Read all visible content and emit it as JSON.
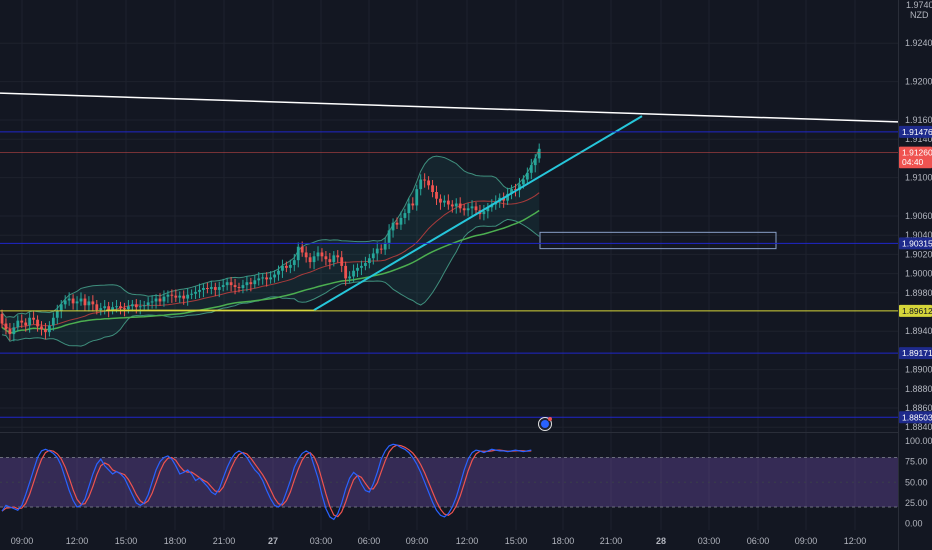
{
  "colors": {
    "background": "#131722",
    "up": "#26a69a",
    "down": "#ef5350",
    "grid": "#1e222d",
    "axis_text": "#b2b5be",
    "hline": "#1f27c9",
    "yellow": "#d6d63a",
    "cyan": "#26c6da",
    "white": "#ffffff",
    "bb_band": "#3f8f7d",
    "bb_fill": "rgba(38,166,154,0.10)",
    "ma_green": "#4caf50",
    "ma_red": "#a93b3b",
    "stoch_k": "#2962ff",
    "stoch_d": "#ef5350",
    "stoch_fill": "rgba(126,87,194,0.32)"
  },
  "price_axis": {
    "unit": "NZD",
    "top_label": "1.97400"
  },
  "chart_data": {
    "type": "candlestick",
    "y_ticks": [
      "1.92400",
      "1.92000",
      "1.91600",
      "1.91400",
      "1.91000",
      "1.90600",
      "1.90400",
      "1.90200",
      "1.90000",
      "1.89800",
      "1.89400",
      "1.89000",
      "1.88800",
      "1.88600",
      "1.88400"
    ],
    "x_ticks": [
      "09:00",
      "12:00",
      "15:00",
      "18:00",
      "21:00",
      "27",
      "03:00",
      "06:00",
      "09:00",
      "12:00",
      "15:00",
      "18:00",
      "21:00",
      "28",
      "03:00",
      "06:00",
      "09:00",
      "12:00"
    ],
    "ylim": [
      1.8835,
      1.9285
    ],
    "candles": {
      "start": 1.8958,
      "closes": [
        1.8948,
        1.8942,
        1.8937,
        1.8944,
        1.8951,
        1.8949,
        1.8946,
        1.8954,
        1.8952,
        1.8945,
        1.8942,
        1.8939,
        1.8946,
        1.8954,
        1.8961,
        1.8968,
        1.8972,
        1.8974,
        1.8969,
        1.8971,
        1.8974,
        1.8967,
        1.8971,
        1.8968,
        1.8962,
        1.8964,
        1.8966,
        1.8962,
        1.8965,
        1.8966,
        1.8964,
        1.8963,
        1.8966,
        1.8968,
        1.8965,
        1.8966,
        1.8967,
        1.897,
        1.8971,
        1.8974,
        1.8971,
        1.8976,
        1.8978,
        1.8977,
        1.8975,
        1.8977,
        1.8974,
        1.8978,
        1.8979,
        1.8981,
        1.8983,
        1.8985,
        1.8984,
        1.8986,
        1.8983,
        1.8986,
        1.8988,
        1.8991,
        1.8988,
        1.8986,
        1.8985,
        1.8988,
        1.8991,
        1.8989,
        1.8993,
        1.8995,
        1.8996,
        1.8994,
        1.8996,
        1.8999,
        1.9003,
        1.9008,
        1.9006,
        1.9009,
        1.9014,
        1.9028,
        1.9022,
        1.9017,
        1.9012,
        1.9018,
        1.9022,
        1.9018,
        1.9015,
        1.9012,
        1.9019,
        1.9017,
        1.9008,
        1.8995,
        1.8997,
        1.9003,
        1.9006,
        1.9008,
        1.9011,
        1.9016,
        1.9021,
        1.9026,
        1.9025,
        1.9032,
        1.9045,
        1.9053,
        1.9051,
        1.9058,
        1.9063,
        1.9073,
        1.9071,
        1.9088,
        1.9098,
        1.9097,
        1.9092,
        1.9085,
        1.9078,
        1.9074,
        1.9076,
        1.9072,
        1.907,
        1.9073,
        1.9068,
        1.9066,
        1.9068,
        1.907,
        1.9066,
        1.9062,
        1.9065,
        1.9069,
        1.9072,
        1.9075,
        1.9079,
        1.9076,
        1.9083,
        1.9088,
        1.9087,
        1.9093,
        1.9098,
        1.9105,
        1.9113,
        1.912,
        1.913
      ]
    },
    "indicators": [
      "Bollinger Bands",
      "Moving Average",
      "Stochastic RSI"
    ],
    "oscillator": {
      "ticks": [
        "100.00",
        "75.00",
        "50.00",
        "25.00",
        "0.00"
      ],
      "k": [
        15,
        22,
        20,
        18,
        16,
        22,
        35,
        50,
        65,
        80,
        88,
        90,
        88,
        85,
        80,
        70,
        55,
        40,
        28,
        20,
        22,
        30,
        45,
        60,
        72,
        78,
        70,
        65,
        60,
        63,
        60,
        55,
        45,
        35,
        25,
        22,
        25,
        35,
        50,
        65,
        75,
        80,
        82,
        78,
        70,
        60,
        62,
        65,
        60,
        52,
        55,
        50,
        45,
        38,
        35,
        42,
        55,
        68,
        78,
        85,
        88,
        85,
        80,
        72,
        65,
        60,
        52,
        40,
        30,
        22,
        20,
        25,
        38,
        52,
        68,
        78,
        85,
        88,
        85,
        70,
        55,
        35,
        18,
        8,
        5,
        12,
        25,
        42,
        55,
        62,
        58,
        48,
        40,
        38,
        48,
        62,
        78,
        88,
        94,
        96,
        95,
        92,
        90,
        86,
        80,
        72,
        62,
        50,
        38,
        26,
        16,
        10,
        8,
        12,
        20,
        32,
        48,
        65,
        78,
        86,
        89,
        88,
        86,
        88,
        90,
        89,
        88,
        88,
        87,
        88,
        89,
        88,
        87,
        88,
        89
      ],
      "levels": [
        80,
        20
      ]
    },
    "drawings": {
      "resistance_line": [
        1.9188,
        1.9158
      ],
      "trend_line": [
        1.8962,
        1.9164
      ],
      "rectangle": [
        1.9043,
        1.9026
      ]
    },
    "price_tags": [
      {
        "label": "1.91476",
        "price": 1.91476,
        "color": "blue"
      },
      {
        "label": "1.91260",
        "price": 1.9126,
        "color": "red"
      },
      {
        "label": "04:40",
        "price": 1.9116,
        "color": "red"
      },
      {
        "label": "1.90315",
        "price": 1.90315,
        "color": "blue"
      },
      {
        "label": "1.89612",
        "price": 1.89612,
        "color": "yellow"
      },
      {
        "label": "1.89171",
        "price": 1.89171,
        "color": "blue"
      },
      {
        "label": "1.88503",
        "price": 1.88503,
        "color": "blue"
      }
    ]
  }
}
